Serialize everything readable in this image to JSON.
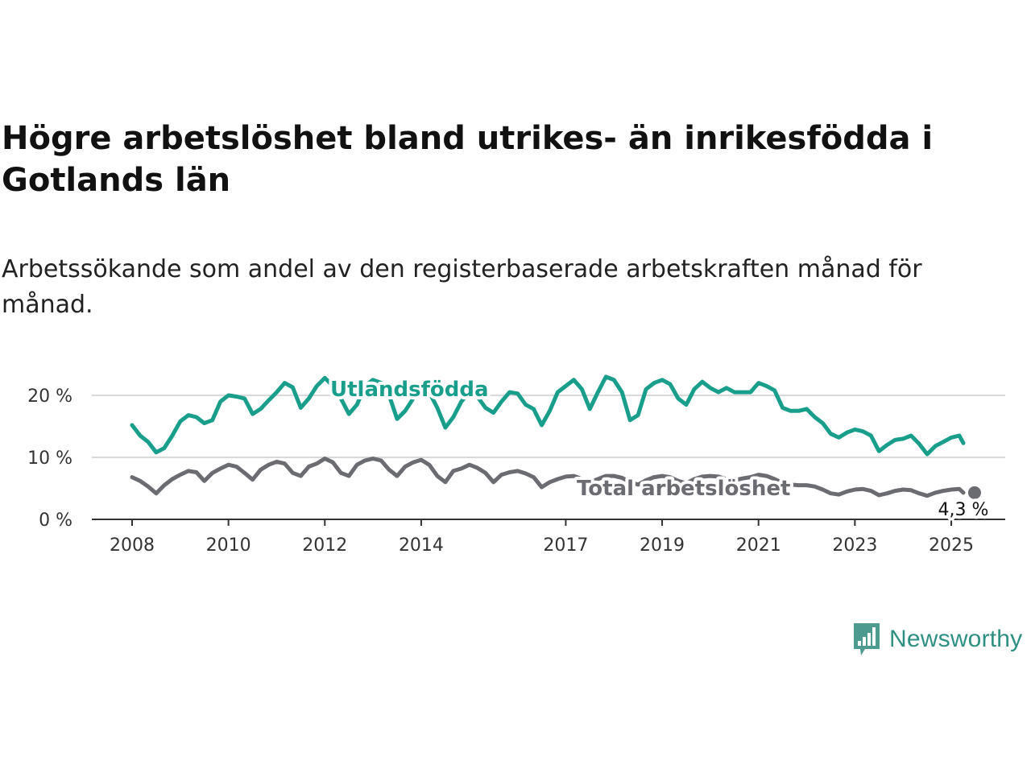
{
  "title": "Högre arbetslöshet bland utrikes- än inrikesfödda i Gotlands län",
  "subtitle": "Arbetssökande som andel av den registerbaserade arbetskraften månad för månad.",
  "brand": {
    "name": "Newsworthy",
    "color": "#2e8f83"
  },
  "chart_data": {
    "type": "line",
    "title": "Högre arbetslöshet bland utrikes- än inrikesfödda i Gotlands län",
    "subtitle": "Arbetssökande som andel av den registerbaserade arbetskraften månad för månad.",
    "x_ticks": [
      "2008",
      "2010",
      "2012",
      "2014",
      "2017",
      "2019",
      "2021",
      "2023",
      "2025"
    ],
    "y_ticks": [
      "0 %",
      "10 %",
      "20 %"
    ],
    "y_tick_values": [
      0,
      10,
      20
    ],
    "xlim": [
      "2008-01",
      "2025-05"
    ],
    "ylim": [
      0,
      25
    ],
    "grid": "horizontal",
    "end_label": "4,3 %",
    "series": [
      {
        "name": "Utlandsfödda",
        "color": "#1a9e8c",
        "points": [
          [
            "2008-01",
            15.2
          ],
          [
            "2008-03",
            13.5
          ],
          [
            "2008-05",
            12.5
          ],
          [
            "2008-07",
            10.8
          ],
          [
            "2008-09",
            11.5
          ],
          [
            "2008-11",
            13.5
          ],
          [
            "2009-01",
            15.8
          ],
          [
            "2009-03",
            16.8
          ],
          [
            "2009-05",
            16.5
          ],
          [
            "2009-07",
            15.5
          ],
          [
            "2009-09",
            16.0
          ],
          [
            "2009-11",
            19.0
          ],
          [
            "2010-01",
            20.0
          ],
          [
            "2010-03",
            19.8
          ],
          [
            "2010-05",
            19.5
          ],
          [
            "2010-07",
            17.0
          ],
          [
            "2010-09",
            17.8
          ],
          [
            "2010-11",
            19.2
          ],
          [
            "2011-01",
            20.5
          ],
          [
            "2011-03",
            22.0
          ],
          [
            "2011-05",
            21.3
          ],
          [
            "2011-07",
            18.0
          ],
          [
            "2011-09",
            19.5
          ],
          [
            "2011-11",
            21.5
          ],
          [
            "2012-01",
            22.8
          ],
          [
            "2012-03",
            21.5
          ],
          [
            "2012-05",
            19.5
          ],
          [
            "2012-07",
            17.0
          ],
          [
            "2012-09",
            18.5
          ],
          [
            "2012-11",
            21.5
          ],
          [
            "2013-01",
            22.5
          ],
          [
            "2013-03",
            22.0
          ],
          [
            "2013-05",
            20.0
          ],
          [
            "2013-07",
            16.2
          ],
          [
            "2013-09",
            17.5
          ],
          [
            "2013-11",
            19.5
          ],
          [
            "2014-01",
            21.0
          ],
          [
            "2014-03",
            20.5
          ],
          [
            "2014-05",
            18.0
          ],
          [
            "2014-07",
            14.8
          ],
          [
            "2014-09",
            16.5
          ],
          [
            "2014-11",
            19.0
          ],
          [
            "2015-01",
            20.5
          ],
          [
            "2015-03",
            19.8
          ],
          [
            "2015-05",
            18.0
          ],
          [
            "2015-07",
            17.2
          ],
          [
            "2015-09",
            19.0
          ],
          [
            "2015-11",
            20.5
          ],
          [
            "2016-01",
            20.3
          ],
          [
            "2016-03",
            18.5
          ],
          [
            "2016-05",
            17.8
          ],
          [
            "2016-07",
            15.2
          ],
          [
            "2016-09",
            17.5
          ],
          [
            "2016-11",
            20.5
          ],
          [
            "2017-01",
            21.5
          ],
          [
            "2017-03",
            22.5
          ],
          [
            "2017-05",
            21.0
          ],
          [
            "2017-07",
            17.8
          ],
          [
            "2017-09",
            20.5
          ],
          [
            "2017-11",
            23.0
          ],
          [
            "2018-01",
            22.5
          ],
          [
            "2018-03",
            20.5
          ],
          [
            "2018-05",
            16.0
          ],
          [
            "2018-07",
            16.8
          ],
          [
            "2018-09",
            21.0
          ],
          [
            "2018-11",
            22.0
          ],
          [
            "2019-01",
            22.5
          ],
          [
            "2019-03",
            21.8
          ],
          [
            "2019-05",
            19.5
          ],
          [
            "2019-07",
            18.5
          ],
          [
            "2019-09",
            21.0
          ],
          [
            "2019-11",
            22.2
          ],
          [
            "2020-01",
            21.2
          ],
          [
            "2020-03",
            20.5
          ],
          [
            "2020-05",
            21.2
          ],
          [
            "2020-07",
            20.5
          ],
          [
            "2020-09",
            20.5
          ],
          [
            "2020-11",
            20.5
          ],
          [
            "2021-01",
            22.0
          ],
          [
            "2021-03",
            21.5
          ],
          [
            "2021-05",
            20.8
          ],
          [
            "2021-07",
            18.0
          ],
          [
            "2021-09",
            17.5
          ],
          [
            "2021-11",
            17.5
          ],
          [
            "2022-01",
            17.8
          ],
          [
            "2022-03",
            16.5
          ],
          [
            "2022-05",
            15.5
          ],
          [
            "2022-07",
            13.8
          ],
          [
            "2022-09",
            13.2
          ],
          [
            "2022-11",
            14.0
          ],
          [
            "2023-01",
            14.5
          ],
          [
            "2023-03",
            14.2
          ],
          [
            "2023-05",
            13.5
          ],
          [
            "2023-07",
            11.0
          ],
          [
            "2023-09",
            12.0
          ],
          [
            "2023-11",
            12.8
          ],
          [
            "2024-01",
            13.0
          ],
          [
            "2024-03",
            13.5
          ],
          [
            "2024-05",
            12.2
          ],
          [
            "2024-07",
            10.5
          ],
          [
            "2024-09",
            11.8
          ],
          [
            "2024-11",
            12.5
          ],
          [
            "2025-01",
            13.2
          ],
          [
            "2025-03",
            13.5
          ],
          [
            "2025-04",
            12.3
          ]
        ]
      },
      {
        "name": "Total arbetslöshet",
        "color": "#6b6b72",
        "points": [
          [
            "2008-01",
            6.8
          ],
          [
            "2008-03",
            6.2
          ],
          [
            "2008-05",
            5.3
          ],
          [
            "2008-07",
            4.2
          ],
          [
            "2008-09",
            5.5
          ],
          [
            "2008-11",
            6.5
          ],
          [
            "2009-01",
            7.2
          ],
          [
            "2009-03",
            7.8
          ],
          [
            "2009-05",
            7.6
          ],
          [
            "2009-07",
            6.2
          ],
          [
            "2009-09",
            7.5
          ],
          [
            "2009-11",
            8.2
          ],
          [
            "2010-01",
            8.8
          ],
          [
            "2010-03",
            8.5
          ],
          [
            "2010-05",
            7.5
          ],
          [
            "2010-07",
            6.4
          ],
          [
            "2010-09",
            8.0
          ],
          [
            "2010-11",
            8.8
          ],
          [
            "2011-01",
            9.3
          ],
          [
            "2011-03",
            9.0
          ],
          [
            "2011-05",
            7.5
          ],
          [
            "2011-07",
            7.0
          ],
          [
            "2011-09",
            8.5
          ],
          [
            "2011-11",
            9.0
          ],
          [
            "2012-01",
            9.8
          ],
          [
            "2012-03",
            9.2
          ],
          [
            "2012-05",
            7.5
          ],
          [
            "2012-07",
            7.0
          ],
          [
            "2012-09",
            8.8
          ],
          [
            "2012-11",
            9.5
          ],
          [
            "2013-01",
            9.8
          ],
          [
            "2013-03",
            9.5
          ],
          [
            "2013-05",
            8.0
          ],
          [
            "2013-07",
            7.0
          ],
          [
            "2013-09",
            8.5
          ],
          [
            "2013-11",
            9.2
          ],
          [
            "2014-01",
            9.6
          ],
          [
            "2014-03",
            8.8
          ],
          [
            "2014-05",
            7.0
          ],
          [
            "2014-07",
            6.0
          ],
          [
            "2014-09",
            7.8
          ],
          [
            "2014-11",
            8.2
          ],
          [
            "2015-01",
            8.8
          ],
          [
            "2015-03",
            8.3
          ],
          [
            "2015-05",
            7.5
          ],
          [
            "2015-07",
            6.0
          ],
          [
            "2015-09",
            7.2
          ],
          [
            "2015-11",
            7.6
          ],
          [
            "2016-01",
            7.8
          ],
          [
            "2016-03",
            7.4
          ],
          [
            "2016-05",
            6.8
          ],
          [
            "2016-07",
            5.2
          ],
          [
            "2016-09",
            6.0
          ],
          [
            "2016-11",
            6.5
          ],
          [
            "2017-01",
            6.9
          ],
          [
            "2017-03",
            7.0
          ],
          [
            "2017-05",
            6.5
          ],
          [
            "2017-07",
            6.0
          ],
          [
            "2017-09",
            6.5
          ],
          [
            "2017-11",
            7.0
          ],
          [
            "2018-01",
            7.0
          ],
          [
            "2018-03",
            6.7
          ],
          [
            "2018-05",
            6.0
          ],
          [
            "2018-07",
            5.6
          ],
          [
            "2018-09",
            6.3
          ],
          [
            "2018-11",
            6.8
          ],
          [
            "2019-01",
            7.0
          ],
          [
            "2019-03",
            6.8
          ],
          [
            "2019-05",
            6.2
          ],
          [
            "2019-07",
            5.8
          ],
          [
            "2019-09",
            6.5
          ],
          [
            "2019-11",
            6.9
          ],
          [
            "2020-01",
            7.0
          ],
          [
            "2020-03",
            6.9
          ],
          [
            "2020-05",
            6.5
          ],
          [
            "2020-07",
            6.3
          ],
          [
            "2020-09",
            6.6
          ],
          [
            "2020-11",
            6.8
          ],
          [
            "2021-01",
            7.2
          ],
          [
            "2021-03",
            7.0
          ],
          [
            "2021-05",
            6.5
          ],
          [
            "2021-07",
            5.9
          ],
          [
            "2021-09",
            5.6
          ],
          [
            "2021-11",
            5.5
          ],
          [
            "2022-01",
            5.5
          ],
          [
            "2022-03",
            5.3
          ],
          [
            "2022-05",
            4.8
          ],
          [
            "2022-07",
            4.2
          ],
          [
            "2022-09",
            4.0
          ],
          [
            "2022-11",
            4.5
          ],
          [
            "2023-01",
            4.8
          ],
          [
            "2023-03",
            4.9
          ],
          [
            "2023-05",
            4.6
          ],
          [
            "2023-07",
            3.9
          ],
          [
            "2023-09",
            4.2
          ],
          [
            "2023-11",
            4.6
          ],
          [
            "2024-01",
            4.8
          ],
          [
            "2024-03",
            4.7
          ],
          [
            "2024-05",
            4.2
          ],
          [
            "2024-07",
            3.8
          ],
          [
            "2024-09",
            4.3
          ],
          [
            "2024-11",
            4.6
          ],
          [
            "2025-01",
            4.8
          ],
          [
            "2025-03",
            4.9
          ],
          [
            "2025-04",
            4.3
          ]
        ]
      }
    ]
  }
}
